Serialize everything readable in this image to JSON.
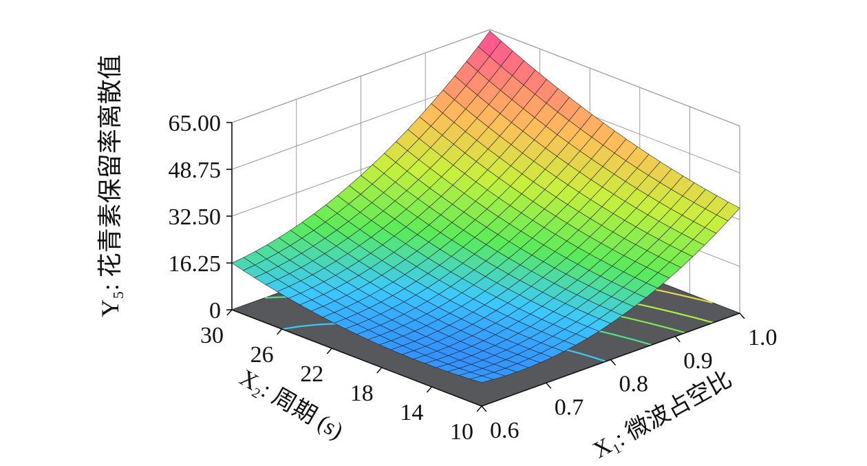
{
  "chart_data": {
    "type": "surface",
    "zlabel": "Y₅: 花青素保留率离散值",
    "x1label": "X₁: 微波占空比",
    "x2label": "X₂: 周期 (s)",
    "z_ticks": [
      "65.00",
      "48.75",
      "32.50",
      "16.25",
      "0"
    ],
    "x1_ticks": [
      "0.6",
      "0.7",
      "0.8",
      "0.9",
      "1.0"
    ],
    "x2_ticks": [
      "10",
      "14",
      "18",
      "22",
      "26",
      "30"
    ],
    "x1_range": [
      0.6,
      1.0
    ],
    "x2_range": [
      10,
      30
    ],
    "z_range": [
      0,
      65
    ],
    "grid": true,
    "surface_samples": [
      {
        "x1": 0.6,
        "x2": 30,
        "z": 16.25
      },
      {
        "x1": 0.6,
        "x2": 10,
        "z": 8.2
      },
      {
        "x1": 1.0,
        "x2": 10,
        "z": 36.5
      },
      {
        "x1": 1.0,
        "x2": 30,
        "z": 64.0
      },
      {
        "x1": 0.8,
        "x2": 20,
        "z": 8.0
      }
    ],
    "contour_floor": true
  }
}
